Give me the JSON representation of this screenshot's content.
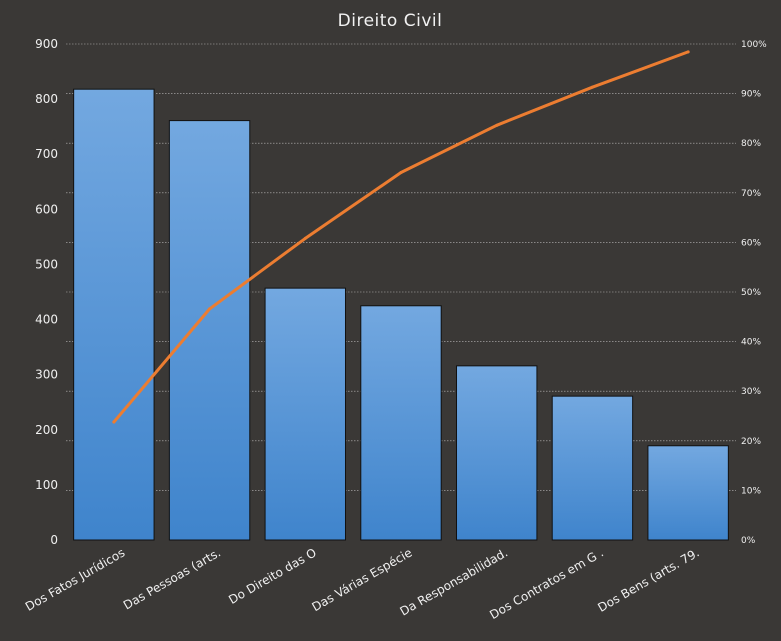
{
  "chart_data": {
    "type": "bar",
    "title": "Direito Civil",
    "categories": [
      "Dos Fatos Jurídicos",
      "Das Pessoas (arts.",
      "Do Direito das O",
      "Das Várias Espécie",
      "Da Responsabilidad.",
      "Dos Contratos em G .",
      "Dos Bens (arts. 79."
    ],
    "series": [
      {
        "type": "bar",
        "values": [
          818,
          761,
          457,
          425,
          316,
          261,
          171
        ]
      },
      {
        "type": "line",
        "axis": "secondary",
        "values": [
          23.8,
          46.6,
          60.8,
          74.1,
          83.6,
          91.3,
          98.4
        ]
      }
    ],
    "ylim": [
      0,
      900
    ],
    "yticks": [
      "0",
      "100",
      "200",
      "300",
      "400",
      "500",
      "600",
      "700",
      "800",
      "900"
    ],
    "y2lim": [
      0,
      100
    ],
    "y2ticks": [
      "0%",
      "10%",
      "20%",
      "30%",
      "40%",
      "50%",
      "60%",
      "70%",
      "80%",
      "90%",
      "100%"
    ],
    "grid": true,
    "legend": "none",
    "colors": {
      "background": "#3a3836",
      "bar_top": "#73a8e0",
      "bar_bottom": "#3f84cc",
      "bar_stroke": "#111111",
      "line": "#ec7d31",
      "grid": "#d9d9d9",
      "text": "#f0f0f0"
    }
  }
}
